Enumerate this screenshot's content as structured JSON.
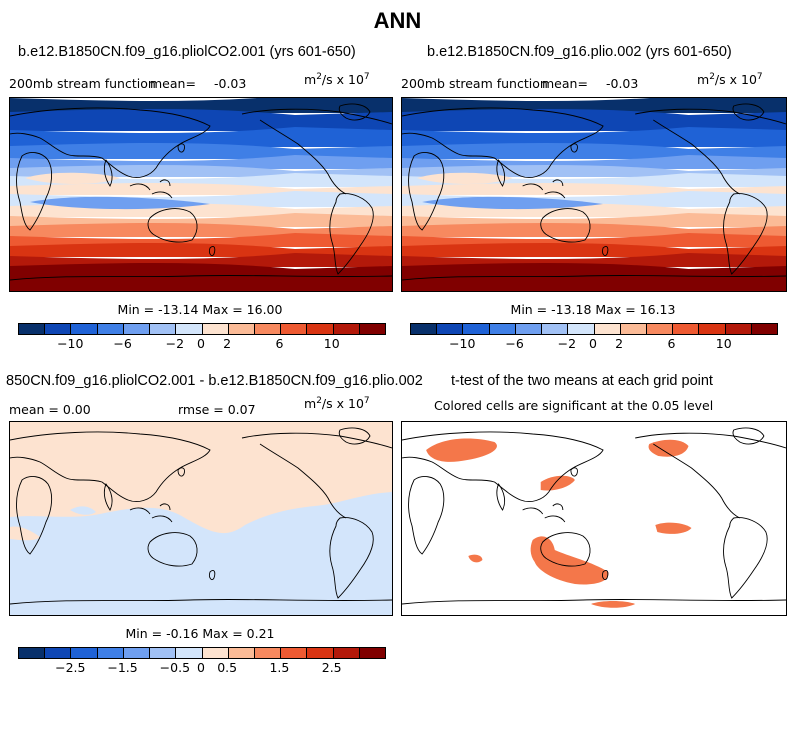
{
  "main_title": "ANN",
  "panels": [
    {
      "title": "b.e12.B1850CN.f09_g16.pliolCO2.001 (yrs 601-650)",
      "variable": "200mb stream function",
      "mean_label": "mean=",
      "mean_value": "-0.03",
      "units": "m²/s x 10⁷",
      "minmax": "Min = -13.14 Max = 16.00",
      "colorbar_ticks": [
        "-10",
        "-6",
        "-2",
        "0",
        "2",
        "6",
        "10"
      ]
    },
    {
      "title": "b.e12.B1850CN.f09_g16.plio.002 (yrs 601-650)",
      "variable": "200mb stream function",
      "mean_label": "mean=",
      "mean_value": "-0.03",
      "units": "m²/s x 10⁷",
      "minmax": "Min = -13.18 Max = 16.13",
      "colorbar_ticks": [
        "-10",
        "-6",
        "-2",
        "0",
        "2",
        "6",
        "10"
      ]
    },
    {
      "title": "850CN.f09_g16.pliolCO2.001 - b.e12.B1850CN.f09_g16.plio.002",
      "mean_text": "mean =   0.00",
      "rmse_text": "rmse =   0.07",
      "units": "m²/s x 10⁷",
      "minmax": "Min = -0.16 Max = 0.21",
      "colorbar_ticks": [
        "-2.5",
        "-1.5",
        "-0.5",
        "0",
        "0.5",
        "1.5",
        "2.5"
      ]
    },
    {
      "title": "t-test of the two means at each grid point",
      "subtitle": "Colored cells are significant at the 0.05 level"
    }
  ],
  "colors": {
    "scale": [
      "#08306b",
      "#0e46b4",
      "#1f62d6",
      "#3f7fe6",
      "#6f9ff0",
      "#a1c1f5",
      "#d3e5fb",
      "#fde3d0",
      "#fbbb97",
      "#f7895f",
      "#ee5a32",
      "#d93412",
      "#b3190a",
      "#800000"
    ],
    "significant": "#f4774a"
  }
}
